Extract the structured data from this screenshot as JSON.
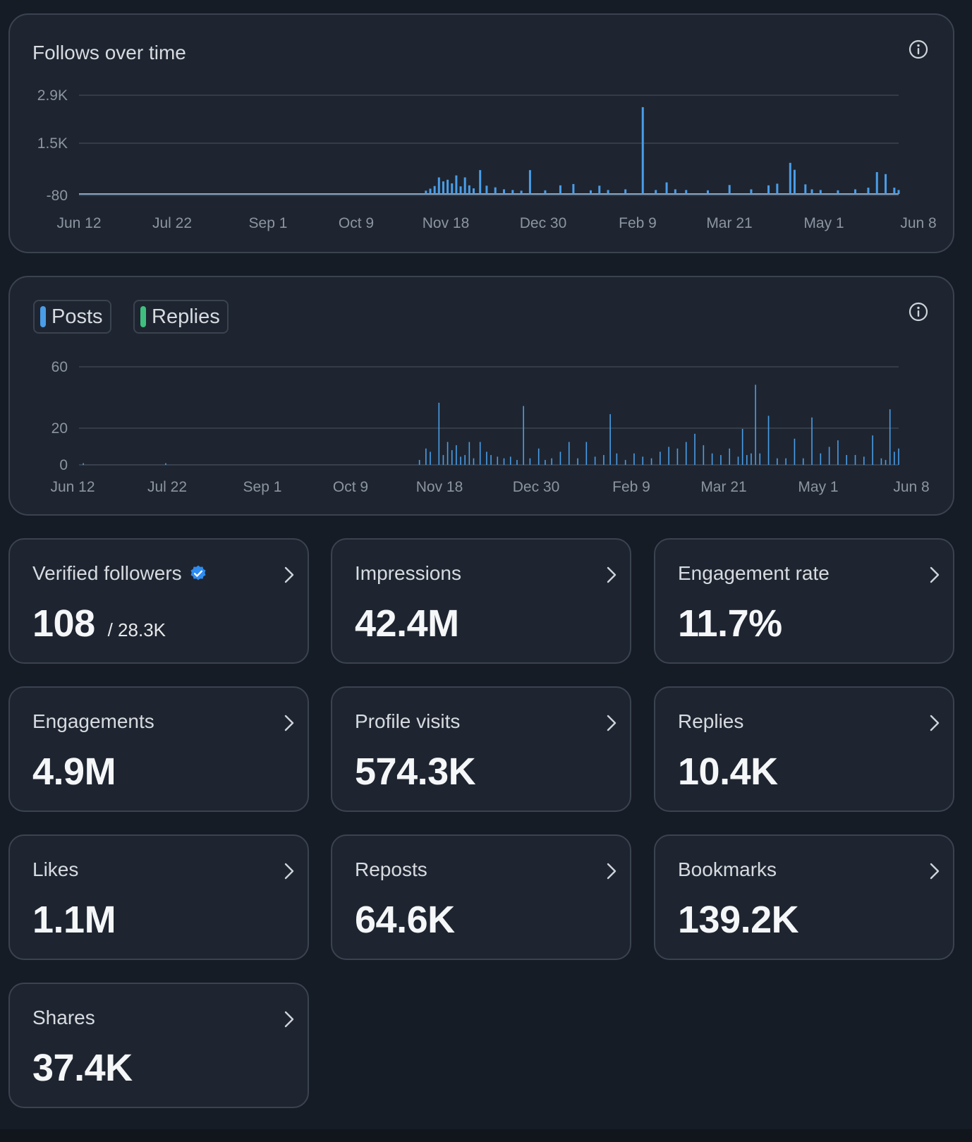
{
  "follows_chart": {
    "title": "Follows over time",
    "icon": "info-icon"
  },
  "activity_chart": {
    "legend": [
      {
        "label": "Posts",
        "color": "#4a9de8"
      },
      {
        "label": "Replies",
        "color": "#3fbf7f"
      }
    ],
    "icon": "info-icon"
  },
  "chart_data": [
    {
      "type": "bar",
      "title": "Follows over time",
      "x_tick_labels": [
        "Jun 12",
        "Jul 22",
        "Sep 1",
        "Oct 9",
        "Nov 18",
        "Dec 30",
        "Feb 9",
        "Mar 21",
        "May 1",
        "Jun 8"
      ],
      "y_tick_labels": [
        "2.9K",
        "1.5K",
        "-80"
      ],
      "ylim": [
        -80,
        2900
      ],
      "grid": true,
      "series": [
        {
          "color": "#4a9de8",
          "x_days": [
            160,
            162,
            164,
            166,
            168,
            170,
            172,
            174,
            176,
            178,
            180,
            182,
            185,
            188,
            192,
            196,
            200,
            204,
            208,
            215,
            222,
            228,
            236,
            240,
            244,
            252,
            260,
            266,
            271,
            275,
            280,
            290,
            300,
            310,
            318,
            322,
            328,
            330,
            335,
            338,
            342,
            350,
            358,
            364,
            368,
            372,
            376,
            378
          ],
          "values": [
            20,
            80,
            160,
            420,
            300,
            350,
            240,
            480,
            150,
            420,
            180,
            90,
            640,
            170,
            120,
            60,
            40,
            20,
            640,
            30,
            180,
            220,
            30,
            170,
            40,
            60,
            2540,
            40,
            270,
            60,
            40,
            30,
            190,
            60,
            180,
            230,
            860,
            650,
            210,
            60,
            40,
            30,
            60,
            110,
            580,
            520,
            110,
            40
          ]
        }
      ]
    },
    {
      "type": "bar",
      "x_tick_labels": [
        "Jun 12",
        "Jul 22",
        "Sep 1",
        "Oct 9",
        "Nov 18",
        "Dec 30",
        "Feb 9",
        "Mar 21",
        "May 1",
        "Jun 8"
      ],
      "y_tick_labels": [
        "60",
        "20",
        "0"
      ],
      "ylim": [
        0,
        60
      ],
      "grid": true,
      "series": [
        {
          "name": "Posts",
          "color": "#4a9de8",
          "x_days": [
            2,
            40,
            157,
            160,
            162,
            166,
            168,
            170,
            172,
            174,
            176,
            178,
            180,
            182,
            185,
            188,
            190,
            193,
            196,
            199,
            202,
            205,
            208,
            212,
            215,
            218,
            222,
            226,
            230,
            234,
            238,
            242,
            245,
            248,
            252,
            256,
            260,
            264,
            268,
            272,
            276,
            280,
            284,
            288,
            292,
            296,
            300,
            304,
            306,
            308,
            310,
            312,
            314,
            318,
            322,
            326,
            330,
            334,
            338,
            342,
            346,
            350,
            354,
            358,
            362,
            366,
            370,
            372,
            374,
            376,
            378
          ],
          "values": [
            1,
            1,
            3,
            10,
            8,
            38,
            6,
            14,
            9,
            12,
            5,
            6,
            14,
            4,
            14,
            8,
            6,
            5,
            4,
            5,
            3,
            36,
            4,
            10,
            3,
            4,
            8,
            14,
            4,
            14,
            5,
            6,
            31,
            7,
            3,
            7,
            5,
            4,
            8,
            11,
            10,
            14,
            19,
            12,
            7,
            6,
            10,
            5,
            22,
            6,
            7,
            49,
            7,
            30,
            4,
            4,
            16,
            4,
            29,
            7,
            11,
            15,
            6,
            6,
            5,
            18,
            4,
            3,
            34,
            8,
            10
          ]
        }
      ]
    }
  ],
  "stats": [
    {
      "label": "Verified followers",
      "value": "108",
      "sub": "/ 28.3K",
      "icon": "verified-badge-icon",
      "badge_color": "#2f8cf0"
    },
    {
      "label": "Impressions",
      "value": "42.4M"
    },
    {
      "label": "Engagement rate",
      "value": "11.7%"
    },
    {
      "label": "Engagements",
      "value": "4.9M"
    },
    {
      "label": "Profile visits",
      "value": "574.3K"
    },
    {
      "label": "Replies",
      "value": "10.4K"
    },
    {
      "label": "Likes",
      "value": "1.1M"
    },
    {
      "label": "Reposts",
      "value": "64.6K"
    },
    {
      "label": "Bookmarks",
      "value": "139.2K"
    },
    {
      "label": "Shares",
      "value": "37.4K"
    }
  ],
  "colors": {
    "background": "#161c26",
    "card": "#1e2530",
    "border": "#3a4350",
    "accent": "#4a9de8"
  }
}
